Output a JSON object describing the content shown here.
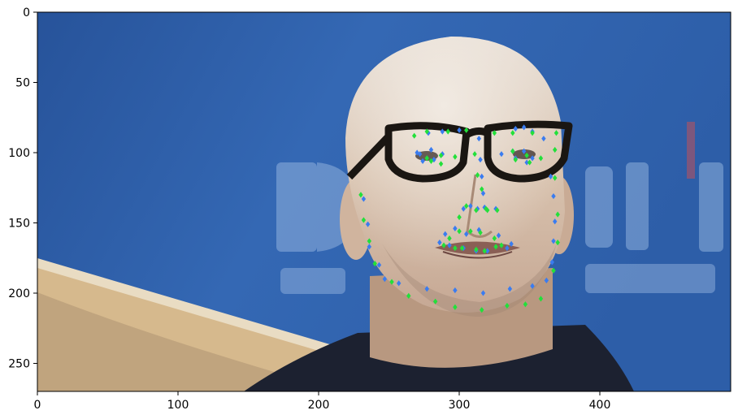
{
  "figure": {
    "x_ticks": [
      "0",
      "100",
      "200",
      "300",
      "400"
    ],
    "y_ticks": [
      "0",
      "50",
      "100",
      "150",
      "200",
      "250"
    ]
  },
  "chart_data": {
    "type": "scatter",
    "xlim": [
      0,
      493
    ],
    "ylim": [
      270,
      0
    ],
    "x_tick_values": [
      0,
      100,
      200,
      300,
      400
    ],
    "y_tick_values": [
      0,
      50,
      100,
      150,
      200,
      250
    ],
    "grid": false,
    "legend": "none",
    "background_image": "face-photo",
    "series": [
      {
        "color": "#3a7cf0",
        "marker": "diamond",
        "x": [
          232,
          235,
          236,
          243,
          247,
          257,
          277,
          297,
          317,
          336,
          352,
          362,
          366,
          367,
          368,
          367,
          365,
          270,
          278,
          288,
          300,
          340,
          346,
          352,
          360,
          314,
          315,
          316,
          317,
          303,
          308,
          313,
          318,
          326,
          272,
          280,
          288,
          282,
          274,
          330,
          338,
          346,
          352,
          348,
          340,
          286,
          290,
          297,
          305,
          314,
          328,
          337,
          334,
          320,
          312,
          303,
          293
        ],
        "y": [
          133,
          151,
          167,
          180,
          190,
          193,
          197,
          198,
          200,
          197,
          195,
          191,
          178,
          163,
          149,
          131,
          117,
          100,
          86,
          85,
          84,
          83,
          82,
          85,
          90,
          90,
          105,
          117,
          129,
          140,
          138,
          140,
          139,
          140,
          101,
          98,
          101,
          105,
          106,
          101,
          99,
          99,
          104,
          107,
          104,
          164,
          158,
          154,
          158,
          155,
          159,
          165,
          168,
          170,
          170,
          168,
          166
        ]
      },
      {
        "color": "#22e03a",
        "marker": "diamond",
        "x": [
          230,
          232,
          236,
          240,
          252,
          264,
          283,
          297,
          316,
          334,
          347,
          358,
          367,
          370,
          370,
          368,
          368,
          268,
          277,
          292,
          305,
          325,
          338,
          352,
          369,
          311,
          313,
          316,
          319,
          300,
          305,
          312,
          320,
          327,
          277,
          287,
          297,
          287,
          280,
          338,
          348,
          358,
          350,
          340,
          289,
          293,
          300,
          308,
          315,
          325,
          330,
          326,
          318,
          312,
          302,
          297
        ],
        "y": [
          130,
          148,
          163,
          179,
          192,
          202,
          206,
          210,
          212,
          209,
          208,
          204,
          184,
          164,
          144,
          118,
          98,
          88,
          85,
          85,
          84,
          86,
          86,
          86,
          86,
          101,
          116,
          126,
          140,
          146,
          138,
          141,
          141,
          141,
          104,
          102,
          103,
          108,
          106,
          99,
          102,
          104,
          107,
          105,
          166,
          161,
          156,
          156,
          157,
          161,
          166,
          167,
          170,
          169,
          168,
          168
        ]
      }
    ]
  }
}
